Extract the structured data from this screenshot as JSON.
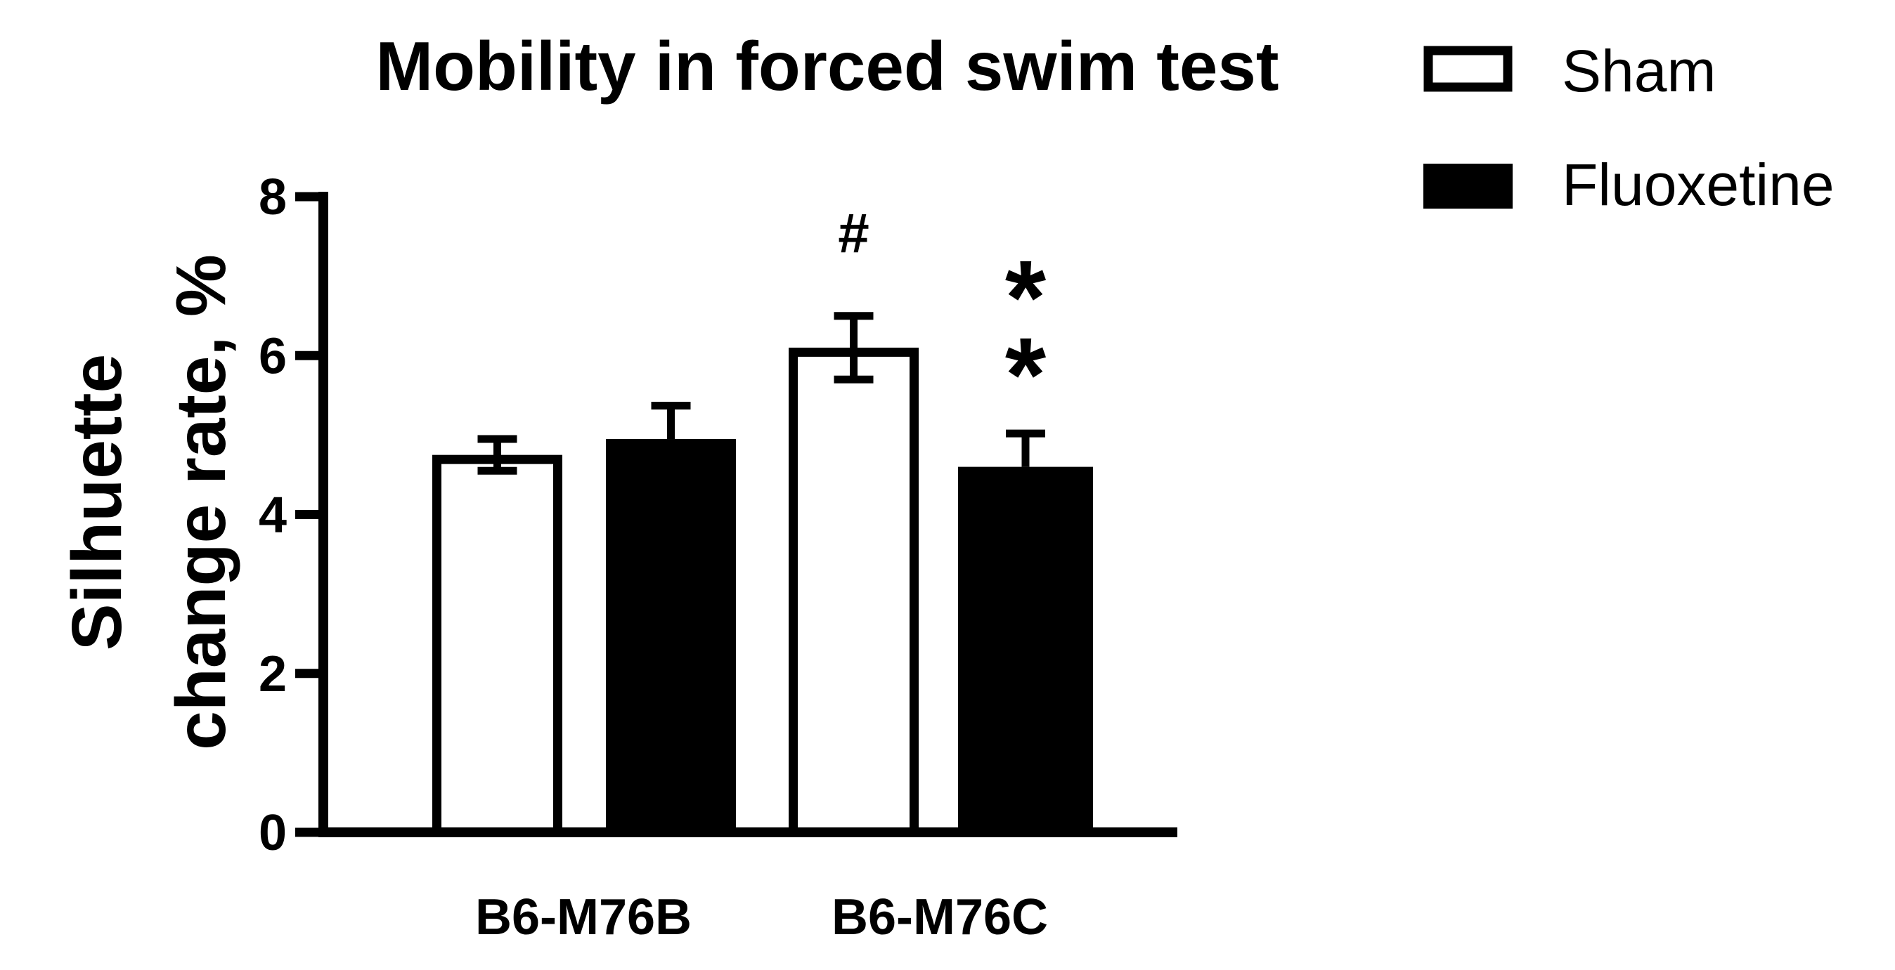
{
  "chart_data": {
    "type": "bar",
    "title": "Mobility in forced swim test",
    "ylabel_lines": [
      "Silhuette",
      "change rate, %"
    ],
    "xlabel": "",
    "ylim": [
      0,
      8
    ],
    "yticks": [
      0,
      2,
      4,
      6,
      8
    ],
    "categories": [
      "B6-M76B",
      "B6-M76C"
    ],
    "legend_position": "top-right",
    "grid": false,
    "series": [
      {
        "name": "Sham",
        "fill": "#ffffff",
        "values": [
          4.75,
          6.1
        ],
        "errors": [
          0.2,
          0.4
        ]
      },
      {
        "name": "Fluoxetine",
        "fill": "#000000",
        "values": [
          4.95,
          4.6
        ],
        "errors": [
          0.42,
          0.42
        ]
      }
    ],
    "annotations": [
      {
        "text": "#",
        "category": 1,
        "series": 0
      },
      {
        "text": "*",
        "category": 1,
        "series": 1
      },
      {
        "text": "*",
        "category": 1,
        "series": 1
      }
    ]
  }
}
